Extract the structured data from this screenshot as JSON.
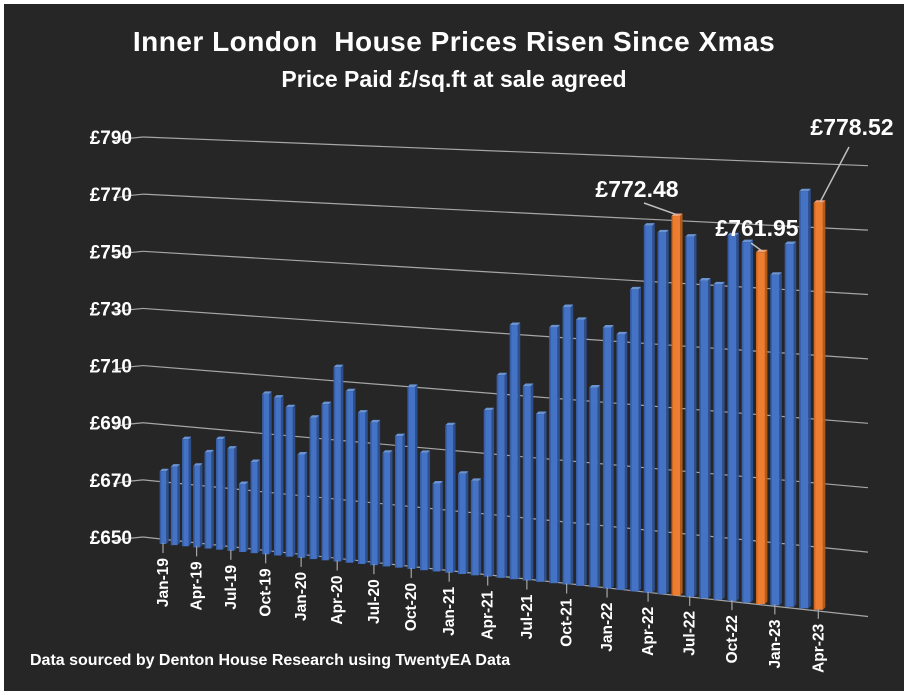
{
  "page": {
    "title": "Inner London  House Prices Risen Since Xmas",
    "subtitle": "Price Paid £/sq.ft at sale agreed",
    "footer": "Data sourced by Denton House Research using TwentyEA Data"
  },
  "colors": {
    "background": "#262626",
    "frame": "#FFFFFF",
    "text": "#FFFFFF",
    "gridline": "#A6A6A6",
    "leader_line": "#BFBFBF",
    "bar_blue": "#4472C4",
    "bar_blue_side": "#2E4F8E",
    "bar_blue_top": "#6A93D4",
    "bar_orange": "#ED7D31",
    "bar_orange_side": "#B55A17",
    "bar_orange_top": "#F2996A"
  },
  "chart_data": {
    "type": "bar",
    "projection": "3d-tilt",
    "title": "Inner London  House Prices Risen Since Xmas",
    "subtitle": "Price Paid £/sq.ft at sale agreed",
    "xlabel": "",
    "ylabel": "Price Paid £/sq.ft",
    "ylim": [
      650,
      790
    ],
    "grid": true,
    "legend": false,
    "yticks": [
      {
        "value": 650,
        "label": "£650"
      },
      {
        "value": 670,
        "label": "£670"
      },
      {
        "value": 690,
        "label": "£690"
      },
      {
        "value": 710,
        "label": "£710"
      },
      {
        "value": 730,
        "label": "£730"
      },
      {
        "value": 750,
        "label": "£750"
      },
      {
        "value": 770,
        "label": "£770"
      },
      {
        "value": 790,
        "label": "£790"
      }
    ],
    "xtick_every": 3,
    "categories": [
      "Jan-19",
      "Feb-19",
      "Mar-19",
      "Apr-19",
      "May-19",
      "Jun-19",
      "Jul-19",
      "Aug-19",
      "Sep-19",
      "Oct-19",
      "Nov-19",
      "Dec-19",
      "Jan-20",
      "Feb-20",
      "Mar-20",
      "Apr-20",
      "May-20",
      "Jun-20",
      "Jul-20",
      "Aug-20",
      "Sep-20",
      "Oct-20",
      "Nov-20",
      "Dec-20",
      "Jan-21",
      "Feb-21",
      "Mar-21",
      "Apr-21",
      "May-21",
      "Jun-21",
      "Jul-21",
      "Aug-21",
      "Sep-21",
      "Oct-21",
      "Nov-21",
      "Dec-21",
      "Jan-22",
      "Feb-22",
      "Mar-22",
      "Apr-22",
      "May-22",
      "Jun-22",
      "Jul-22",
      "Aug-22",
      "Sep-22",
      "Oct-22",
      "Nov-22",
      "Dec-22",
      "Jan-23",
      "Feb-23",
      "Mar-23",
      "Apr-23"
    ],
    "values": [
      675,
      677,
      687,
      678,
      683,
      688,
      685,
      673,
      681,
      705,
      704,
      701,
      685,
      698,
      703,
      716,
      708,
      701,
      698,
      688,
      694,
      711,
      689,
      679,
      699,
      683,
      681,
      705,
      717,
      734,
      714,
      705,
      734,
      741,
      737,
      715,
      735,
      733,
      748,
      769,
      767,
      772.48,
      766,
      752,
      751,
      767,
      765,
      761.95,
      755,
      765,
      782,
      778.52
    ],
    "highlighted_categories": [
      "Jun-22",
      "Dec-22",
      "Apr-23"
    ],
    "annotations": [
      {
        "category": "Jun-22",
        "value": 772.48,
        "label": "£772.48"
      },
      {
        "category": "Dec-22",
        "value": 761.95,
        "label": "£761.95"
      },
      {
        "category": "Apr-23",
        "value": 778.52,
        "label": "£778.52"
      }
    ]
  }
}
